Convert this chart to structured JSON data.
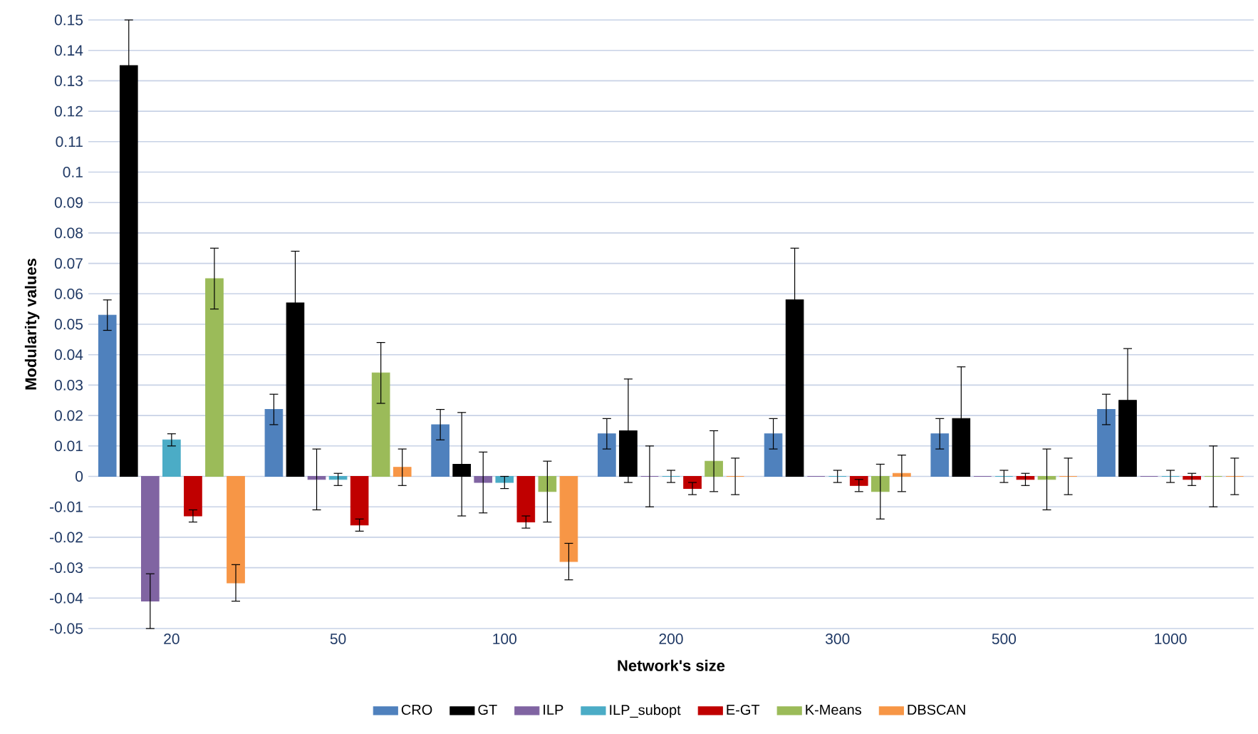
{
  "chart_data": {
    "type": "bar",
    "xlabel": "Network's size",
    "ylabel": "Modularity values",
    "categories": [
      "20",
      "50",
      "100",
      "200",
      "300",
      "500",
      "1000"
    ],
    "series": [
      {
        "name": "CRO",
        "color": "#4f81bd",
        "values": [
          0.053,
          0.022,
          0.017,
          0.014,
          0.014,
          0.014,
          0.022
        ],
        "errors": [
          0.005,
          0.005,
          0.005,
          0.005,
          0.005,
          0.005,
          0.005
        ]
      },
      {
        "name": "GT",
        "color": "#000000",
        "values": [
          0.135,
          0.057,
          0.004,
          0.015,
          0.058,
          0.019,
          0.025
        ],
        "errors": [
          0.015,
          0.017,
          0.017,
          0.017,
          0.017,
          0.017,
          0.017
        ]
      },
      {
        "name": "ILP",
        "color": "#8064a2",
        "values": [
          -0.041,
          -0.001,
          -0.002,
          0,
          0,
          0,
          0
        ],
        "errors": [
          0.009,
          0.01,
          0.01,
          0.01,
          null,
          null,
          null
        ]
      },
      {
        "name": "ILP_subopt",
        "color": "#4bacc6",
        "values": [
          0.012,
          -0.001,
          -0.002,
          0,
          0,
          0,
          0
        ],
        "errors": [
          0.002,
          0.002,
          0.002,
          0.002,
          0.002,
          0.002,
          0.002
        ]
      },
      {
        "name": "E-GT",
        "color": "#c00000",
        "values": [
          -0.013,
          -0.016,
          -0.015,
          -0.004,
          -0.003,
          -0.001,
          -0.001
        ],
        "errors": [
          0.002,
          0.002,
          0.002,
          0.002,
          0.002,
          0.002,
          0.002
        ]
      },
      {
        "name": "K-Means",
        "color": "#9bbb59",
        "values": [
          0.065,
          0.034,
          -0.005,
          0.005,
          -0.005,
          -0.001,
          0
        ],
        "errors": [
          0.01,
          0.01,
          0.01,
          0.01,
          0.009,
          0.01,
          0.01
        ]
      },
      {
        "name": "DBSCAN",
        "color": "#f79646",
        "values": [
          -0.035,
          0.003,
          -0.028,
          0,
          0.001,
          0,
          0
        ],
        "errors": [
          0.006,
          0.006,
          0.006,
          0.006,
          0.006,
          0.006,
          0.006
        ]
      }
    ],
    "ylim": [
      -0.05,
      0.15
    ],
    "yticks": [
      -0.05,
      -0.04,
      -0.03,
      -0.02,
      -0.01,
      0,
      0.01,
      0.02,
      0.03,
      0.04,
      0.05,
      0.06,
      0.07,
      0.08,
      0.09,
      0.1,
      0.11,
      0.12,
      0.13,
      0.14,
      0.15
    ],
    "grid": "y",
    "legend": "bottom"
  }
}
